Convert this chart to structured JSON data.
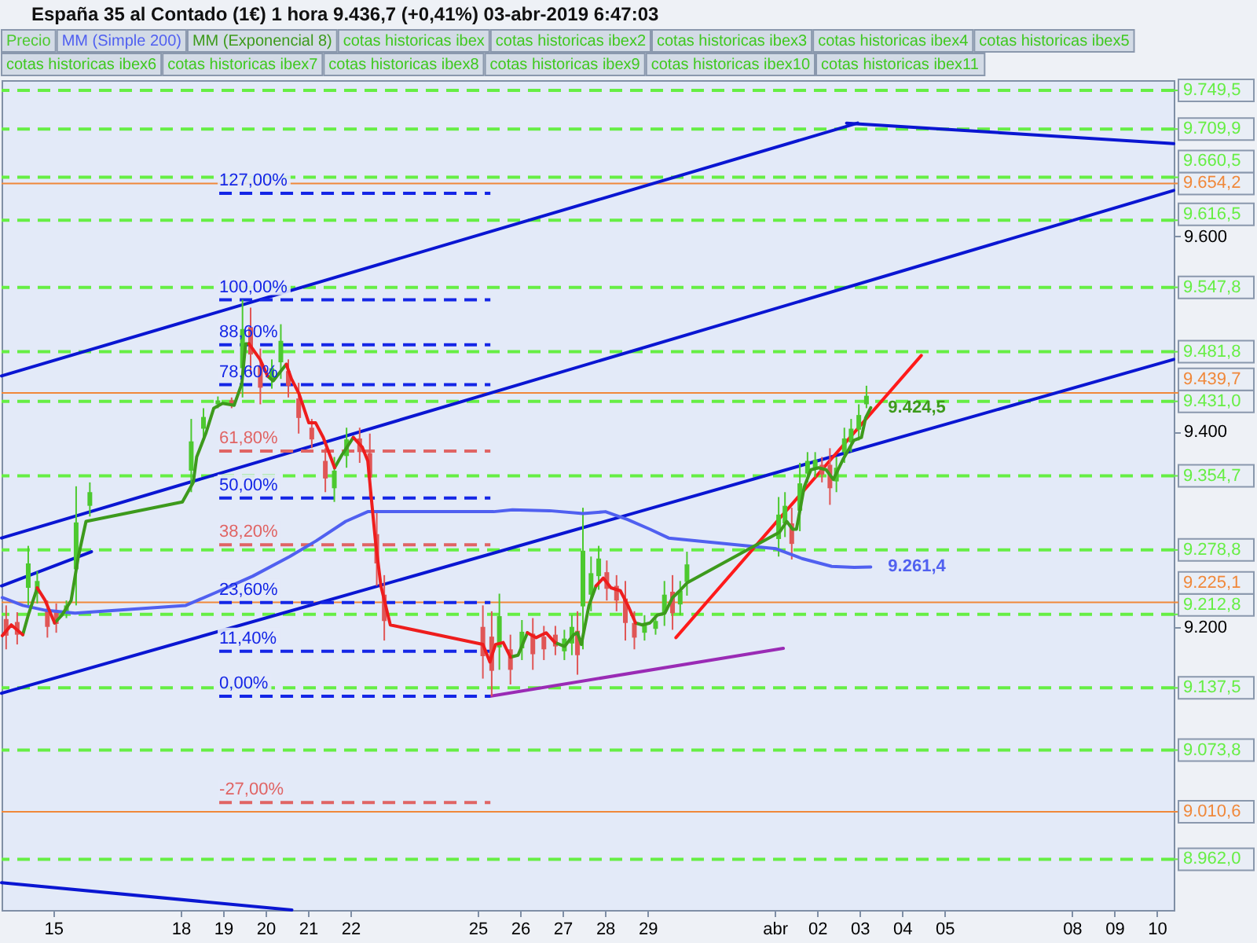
{
  "chart_data": {
    "type": "candlestick",
    "title": "España 35 al Contado (1€) 1 hora 9.436,7 (+0,41%) 03-abr-2019 6:47:03",
    "legend": "top left",
    "xlim": [
      "2019-03-13T18:45",
      "2019-04-10T09:35"
    ],
    "ylim": [
      8910,
      9760
    ],
    "xticks": [
      {
        "value": "2019-03-15",
        "label": "15"
      },
      {
        "value": "2019-03-18",
        "label": "18"
      },
      {
        "value": "2019-03-19",
        "label": "19"
      },
      {
        "value": "2019-03-20",
        "label": "20"
      },
      {
        "value": "2019-03-21",
        "label": "21"
      },
      {
        "value": "2019-03-22",
        "label": "22"
      },
      {
        "value": "2019-03-25",
        "label": "25"
      },
      {
        "value": "2019-03-26",
        "label": "26"
      },
      {
        "value": "2019-03-27",
        "label": "27"
      },
      {
        "value": "2019-03-28",
        "label": "28"
      },
      {
        "value": "2019-03-29",
        "label": "29"
      },
      {
        "value": "2019-04-01",
        "label": "abr"
      },
      {
        "value": "2019-04-02",
        "label": "02"
      },
      {
        "value": "2019-04-03",
        "label": "03"
      },
      {
        "value": "2019-04-04",
        "label": "04"
      },
      {
        "value": "2019-04-05",
        "label": "05"
      },
      {
        "value": "2019-04-08",
        "label": "08"
      },
      {
        "value": "2019-04-09",
        "label": "09"
      },
      {
        "value": "2019-04-10",
        "label": "10"
      }
    ],
    "yticks": [
      {
        "value": 9200,
        "label": "9.200"
      },
      {
        "value": 9400,
        "label": "9.400"
      },
      {
        "value": 9600,
        "label": "9.600"
      }
    ],
    "ref_lines": [
      {
        "axis": "y",
        "value": 9749.5,
        "label": "9.749,5",
        "color": "#66ee44",
        "line_style": "dashed"
      },
      {
        "axis": "y",
        "value": 9709.9,
        "label": "9.709,9",
        "color": "#66ee44",
        "line_style": "dashed"
      },
      {
        "axis": "y",
        "value": 9660.5,
        "label": "9.660,5",
        "color": "#66ee44",
        "line_style": "dashed"
      },
      {
        "axis": "y",
        "value": 9654.2,
        "label": "9.654,2",
        "color": "#f0883a"
      },
      {
        "axis": "y",
        "value": 9616.5,
        "label": "9.616,5",
        "color": "#66ee44",
        "line_style": "dashed"
      },
      {
        "axis": "y",
        "value": 9547.8,
        "label": "9.547,8",
        "color": "#66ee44",
        "line_style": "dashed"
      },
      {
        "axis": "y",
        "value": 9481.8,
        "label": "9.481,8",
        "color": "#66ee44",
        "line_style": "dashed"
      },
      {
        "axis": "y",
        "value": 9439.7,
        "label": "9.439,7",
        "color": "#f0883a"
      },
      {
        "axis": "y",
        "value": 9431.0,
        "label": "9.431,0",
        "color": "#66ee44",
        "line_style": "dashed"
      },
      {
        "axis": "y",
        "value": 9354.7,
        "label": "9.354,7",
        "color": "#66ee44",
        "line_style": "dashed"
      },
      {
        "axis": "y",
        "value": 9278.8,
        "label": "9.278,8",
        "color": "#66ee44",
        "line_style": "dashed"
      },
      {
        "axis": "y",
        "value": 9225.1,
        "label": "9.225,1",
        "color": "#f0883a"
      },
      {
        "axis": "y",
        "value": 9212.8,
        "label": "9.212,8",
        "color": "#66ee44",
        "line_style": "dashed"
      },
      {
        "axis": "y",
        "value": 9137.5,
        "label": "9.137,5",
        "color": "#66ee44",
        "line_style": "dashed"
      },
      {
        "axis": "y",
        "value": 9073.8,
        "label": "9.073,8",
        "color": "#66ee44",
        "line_style": "dashed"
      },
      {
        "axis": "y",
        "value": 9010.6,
        "label": "9.010,6",
        "color": "#f0883a"
      },
      {
        "axis": "y",
        "value": 8962.0,
        "label": "8.962,0",
        "color": "#66ee44",
        "line_style": "dashed"
      }
    ],
    "annotations": [
      "cotas historicas ibex",
      "cotas historicas ibex2",
      "cotas historicas ibex3",
      "cotas historicas ibex4",
      "cotas historicas ibex5",
      "cotas historicas ibex6",
      "cotas historicas ibex7",
      "cotas historicas ibex8",
      "cotas historicas ibex9",
      "cotas historicas ibex10",
      "cotas historicas ibex11",
      {
        "text": "127,00%",
        "x": "2019-03-18T21:50",
        "y": 9644
      },
      {
        "text": "100,00%",
        "x": "2019-03-18T21:50",
        "y": 9535
      },
      {
        "text": "88,60%",
        "x": "2019-03-18T21:50",
        "y": 9489
      },
      {
        "text": "78,60%",
        "x": "2019-03-18T21:50",
        "y": 9448
      },
      {
        "text": "61,80%",
        "x": "2019-03-18T21:50",
        "y": 9380
      },
      {
        "text": "50,00%",
        "x": "2019-03-18T21:50",
        "y": 9332
      },
      {
        "text": "38,20%",
        "x": "2019-03-18T21:50",
        "y": 9284
      },
      {
        "text": "23,60%",
        "x": "2019-03-18T21:50",
        "y": 9225
      },
      {
        "text": "11,40%",
        "x": "2019-03-18T21:50",
        "y": 9175
      },
      {
        "text": "0,00%",
        "x": "2019-03-18T21:50",
        "y": 9129
      },
      {
        "text": "-27,00%",
        "x": "2019-03-18T21:50",
        "y": 9020
      }
    ],
    "x": [
      "2019-03-13T19:10",
      "2019-03-14T00:15",
      "2019-03-14T06:45",
      "2019-03-14T09:50",
      "2019-03-14T14:55",
      "2019-03-14T19:25",
      "2019-03-15T00:45",
      "2019-03-15T04:50",
      "2019-03-15T10:05",
      "2019-03-15T14:10",
      "2019-03-15T18:30",
      "2019-03-18T01:00",
      "2019-03-18T07:10",
      "2019-03-18T09:05",
      "2019-03-18T14:25",
      "2019-03-18T18:45",
      "2019-03-18T23:45",
      "2019-03-19T03:05",
      "2019-03-19T06:15",
      "2019-03-19T10:35",
      "2019-03-19T12:45",
      "2019-03-19T14:40",
      "2019-03-19T20:55",
      "2019-03-20T01:10",
      "2019-03-20T04:20",
      "2019-03-20T08:40",
      "2019-03-20T11:45",
      "2019-03-20T14:40",
      "2019-03-20T18:55",
      "2019-03-21T00:30",
      "2019-03-21T04:20",
      "2019-03-21T08:40",
      "2019-03-21T15:05",
      "2019-03-21T19:10",
      "2019-03-22T01:40",
      "2019-03-22T06:45",
      "2019-03-22T09:50",
      "2019-03-22T14:10",
      "2019-03-22T17:15",
      "2019-03-22T22:35",
      "2019-03-25T02:55",
      "2019-03-25T06:55",
      "2019-03-25T08:25",
      "2019-03-25T10:05",
      "2019-03-25T14:25",
      "2019-03-25T18:30",
      "2019-03-25T22:50",
      "2019-03-26T04:05",
      "2019-03-26T09:05",
      "2019-03-26T14:40",
      "2019-03-26T19:40",
      "2019-03-27T01:10",
      "2019-03-27T06:15",
      "2019-03-27T08:25",
      "2019-03-27T10:35",
      "2019-03-27T14:55",
      "2019-03-27T18:55",
      "2019-03-27T23:00",
      "2019-03-28T03:20",
      "2019-03-28T08:40",
      "2019-03-28T12:55",
      "2019-03-28T17:15",
      "2019-03-28T21:05",
      "2019-03-29T01:25",
      "2019-03-29T05:30",
      "2019-03-29T09:50",
      "2019-03-29T12:00",
      "2019-03-29T14:10",
      "2019-03-29T18:15",
      "2019-03-29T22:20",
      "2019-04-01T02:40",
      "2019-04-01T06:45",
      "2019-04-01T08:25",
      "2019-04-01T10:05",
      "2019-04-01T12:15",
      "2019-04-01T16:35",
      "2019-04-01T20:25",
      "2019-04-02T00:45",
      "2019-04-02T05:00",
      "2019-04-02T09:05",
      "2019-04-02T14:25",
      "2019-04-02T20:40",
      "2019-04-03T01:00",
      "2019-04-03T03:20",
      "2019-04-03T06:15"
    ],
    "series": [
      {
        "name": "Precio",
        "x": [
          "2019-03-13T21:20",
          "2019-03-14T03:35",
          "2019-03-14T09:50",
          "2019-03-14T14:55",
          "2019-03-14T20:40",
          "2019-03-15T01:40",
          "2019-03-15T07:25",
          "2019-03-15T12:55",
          "2019-03-15T20:40",
          "2019-03-18T06:00",
          "2019-03-18T12:55",
          "2019-03-18T21:05",
          "2019-03-19T04:50",
          "2019-03-19T11:00",
          "2019-03-19T15:35",
          "2019-03-19T21:05",
          "2019-03-20T03:35",
          "2019-03-20T08:40",
          "2019-03-20T12:55",
          "2019-03-20T18:45",
          "2019-03-21T02:10",
          "2019-03-21T09:50",
          "2019-03-21T14:55",
          "2019-03-21T21:50",
          "2019-03-22T05:15",
          "2019-03-22T11:00",
          "2019-03-22T14:55",
          "2019-03-22T19:10",
          "2019-03-25T02:55",
          "2019-03-25T07:55",
          "2019-03-25T12:15",
          "2019-03-25T18:30",
          "2019-03-26T01:00",
          "2019-03-26T07:10",
          "2019-03-26T13:25",
          "2019-03-26T19:55",
          "2019-03-27T01:00",
          "2019-03-27T05:15",
          "2019-03-27T08:25",
          "2019-03-27T11:30",
          "2019-03-27T16:05",
          "2019-03-27T20:25",
          "2019-03-28T01:00",
          "2019-03-28T06:30",
          "2019-03-28T11:30",
          "2019-03-28T16:35",
          "2019-03-28T22:20",
          "2019-03-29T04:35",
          "2019-03-29T09:35",
          "2019-03-29T14:10",
          "2019-03-29T18:30",
          "2019-03-29T22:20",
          "2019-04-01T02:10",
          "2019-04-01T05:45",
          "2019-04-01T09:35",
          "2019-04-01T14:10",
          "2019-04-01T18:30",
          "2019-04-01T22:50",
          "2019-04-02T02:40",
          "2019-04-02T07:10",
          "2019-04-02T10:50",
          "2019-04-02T15:20",
          "2019-04-02T19:10",
          "2019-04-02T23:30",
          "2019-04-03T03:50"
        ],
        "ohlc": [
          [
            9208,
            9222,
            9177,
            9191
          ],
          [
            9205,
            9215,
            9182,
            9192
          ],
          [
            9240,
            9283,
            9222,
            9265
          ],
          [
            9234,
            9257,
            9224,
            9247
          ],
          [
            9216,
            9227,
            9189,
            9200
          ],
          [
            9215,
            9224,
            9194,
            9203
          ],
          [
            9214,
            9227,
            9209,
            9222
          ],
          [
            9259,
            9344,
            9222,
            9307
          ],
          [
            9324,
            9348,
            9313,
            9338
          ],
          [
            9360,
            9413,
            9338,
            9390
          ],
          [
            9403,
            9424,
            9394,
            9415
          ],
          [
            9428,
            9436,
            9424,
            9432
          ],
          [
            9432,
            9435,
            9424,
            9427
          ],
          [
            9465,
            9535,
            9435,
            9505
          ],
          [
            9507,
            9527,
            9459,
            9479
          ],
          [
            9468,
            9485,
            9428,
            9445
          ],
          [
            9453,
            9474,
            9444,
            9465
          ],
          [
            9471,
            9510,
            9454,
            9493
          ],
          [
            9462,
            9474,
            9435,
            9447
          ],
          [
            9434,
            9450,
            9398,
            9414
          ],
          [
            9404,
            9413,
            9383,
            9392
          ],
          [
            9370,
            9383,
            9338,
            9352
          ],
          [
            9342,
            9374,
            9328,
            9360
          ],
          [
            9375,
            9404,
            9363,
            9392
          ],
          [
            9393,
            9404,
            9368,
            9379
          ],
          [
            9378,
            9398,
            9333,
            9353
          ],
          [
            9295,
            9318,
            9242,
            9265
          ],
          [
            9233,
            9253,
            9186,
            9206
          ],
          [
            9200,
            9222,
            9147,
            9170
          ],
          [
            9190,
            9216,
            9129,
            9155
          ],
          [
            9179,
            9234,
            9156,
            9211
          ],
          [
            9177,
            9192,
            9141,
            9156
          ],
          [
            9178,
            9207,
            9166,
            9195
          ],
          [
            9193,
            9209,
            9156,
            9172
          ],
          [
            9190,
            9201,
            9166,
            9177
          ],
          [
            9192,
            9201,
            9171,
            9180
          ],
          [
            9175,
            9197,
            9166,
            9188
          ],
          [
            9183,
            9212,
            9171,
            9200
          ],
          [
            9196,
            9216,
            9151,
            9171
          ],
          [
            9221,
            9322,
            9177,
            9278
          ],
          [
            9233,
            9272,
            9216,
            9255
          ],
          [
            9252,
            9283,
            9238,
            9270
          ],
          [
            9256,
            9268,
            9227,
            9239
          ],
          [
            9242,
            9253,
            9216,
            9227
          ],
          [
            9229,
            9247,
            9186,
            9204
          ],
          [
            9204,
            9216,
            9177,
            9189
          ],
          [
            9194,
            9212,
            9186,
            9204
          ],
          [
            9198,
            9212,
            9192,
            9206
          ],
          [
            9215,
            9247,
            9201,
            9233
          ],
          [
            9236,
            9253,
            9197,
            9214
          ],
          [
            9223,
            9247,
            9212,
            9237
          ],
          [
            9246,
            9277,
            9232,
            9264
          ],
          [
            9290,
            9333,
            9272,
            9315
          ],
          [
            9306,
            9338,
            9292,
            9324
          ],
          [
            9306,
            9322,
            9269,
            9285
          ],
          [
            9319,
            9368,
            9298,
            9347
          ],
          [
            9357,
            9379,
            9348,
            9370
          ],
          [
            9361,
            9379,
            9353,
            9371
          ],
          [
            9366,
            9374,
            9348,
            9356
          ],
          [
            9366,
            9383,
            9325,
            9342
          ],
          [
            9349,
            9374,
            9338,
            9363
          ],
          [
            9379,
            9404,
            9368,
            9393
          ],
          [
            9389,
            9413,
            9379,
            9403
          ],
          [
            9402,
            9428,
            9391,
            9417
          ],
          [
            9428,
            9447,
            9424,
            9436.7
          ]
        ],
        "colors": [
          "#e05656",
          "#e05656",
          "#4cc92f",
          "#4cc92f",
          "#e05656",
          "#e05656",
          "#4cc92f",
          "#4cc92f",
          "#4cc92f",
          "#4cc92f",
          "#4cc92f",
          "#4cc92f",
          "#e05656",
          "#4cc92f",
          "#e05656",
          "#e05656",
          "#4cc92f",
          "#4cc92f",
          "#e05656",
          "#e05656",
          "#e05656",
          "#e05656",
          "#4cc92f",
          "#4cc92f",
          "#e05656",
          "#e05656",
          "#e05656",
          "#e05656",
          "#e05656",
          "#e05656",
          "#4cc92f",
          "#e05656",
          "#4cc92f",
          "#e05656",
          "#e05656",
          "#e05656",
          "#4cc92f",
          "#4cc92f",
          "#e05656",
          "#4cc92f",
          "#4cc92f",
          "#4cc92f",
          "#e05656",
          "#e05656",
          "#e05656",
          "#e05656",
          "#4cc92f",
          "#4cc92f",
          "#4cc92f",
          "#e05656",
          "#4cc92f",
          "#4cc92f",
          "#4cc92f",
          "#4cc92f",
          "#e05656",
          "#4cc92f",
          "#4cc92f",
          "#4cc92f",
          "#e05656",
          "#e05656",
          "#4cc92f",
          "#4cc92f",
          "#4cc92f",
          "#4cc92f",
          "#4cc92f"
        ]
      },
      {
        "name": "MM (Simple 200)",
        "type": "line",
        "color": "#5060f0",
        "x": [
          "2019-03-13T19:10",
          "2019-03-14T06:45",
          "2019-03-14T19:25",
          "2019-03-15T12:15",
          "2019-03-18T02:55",
          "2019-03-18T19:40",
          "2019-03-19T16:50",
          "2019-03-20T13:40",
          "2019-03-21T04:35",
          "2019-03-21T21:20",
          "2019-03-22T09:50",
          "2019-03-25T09:05",
          "2019-03-25T19:40",
          "2019-03-26T16:35",
          "2019-03-27T11:30",
          "2019-03-28T00:15",
          "2019-03-28T12:45",
          "2019-03-29T01:25",
          "2019-03-29T12:00",
          "2019-04-01T00:45",
          "2019-04-01T15:20",
          "2019-04-02T08:10",
          "2019-04-02T20:55",
          "2019-04-03T06:15"
        ],
        "values": [
          9230,
          9222,
          9217,
          9214,
          9222,
          9235,
          9252,
          9272,
          9288,
          9308,
          9318,
          9318,
          9320,
          9319,
          9316,
          9318,
          9310,
          9300,
          9291,
          9280,
          9270,
          9262,
          9261,
          9261.4
        ],
        "value_labels": [
          null,
          null,
          null,
          null,
          null,
          null,
          null,
          null,
          null,
          null,
          null,
          null,
          null,
          null,
          null,
          null,
          null,
          null,
          null,
          null,
          null,
          null,
          null,
          "9.261,4"
        ]
      },
      {
        "name": "MM (Exponencial 8)",
        "type": "line",
        "color": "#3d9a1c",
        "values": [
          null,
          null,
          9192,
          9212,
          9240,
          null,
          9204,
          9212,
          9227,
          9272,
          9308,
          9328,
          9348,
          9374,
          9399,
          9424,
          9429,
          9428,
          9427,
          9449,
          9490,
          9490,
          null,
          9457,
          9452,
          9462,
          9469,
          null,
          null,
          null,
          null,
          null,
          9363,
          9376,
          9394,
          null,
          null,
          null,
          null,
          null,
          null,
          null,
          null,
          null,
          null,
          9169,
          9171,
          9194,
          null,
          null,
          9184,
          9180,
          9192,
          9194,
          9182,
          9222,
          9242,
          null,
          null,
          null,
          null,
          9204,
          9202,
          9204,
          9212,
          9214,
          9222,
          9230,
          9237,
          9245,
          9297,
          9308,
          9304,
          9300,
          9300,
          9343,
          9361,
          9363,
          9361,
          9351,
          9371,
          9391,
          9394,
          9414,
          9424.5
        ],
        "value_labels": [
          null,
          null,
          null,
          null,
          null,
          null,
          null,
          null,
          null,
          null,
          null,
          null,
          null,
          null,
          null,
          null,
          null,
          null,
          null,
          null,
          null,
          null,
          null,
          null,
          null,
          null,
          null,
          null,
          null,
          null,
          null,
          null,
          null,
          null,
          null,
          null,
          null,
          null,
          null,
          null,
          null,
          null,
          null,
          null,
          null,
          null,
          null,
          null,
          null,
          null,
          null,
          null,
          null,
          null,
          null,
          null,
          null,
          null,
          null,
          null,
          null,
          null,
          null,
          null,
          null,
          null,
          null,
          null,
          null,
          null,
          null,
          null,
          null,
          null,
          null,
          null,
          null,
          null,
          null,
          null,
          null,
          null,
          null,
          null,
          "9.424,5"
        ]
      },
      {
        "type": "line",
        "color": "#ee1d1d",
        "values": [
          9191,
          9202,
          9192,
          null,
          9240,
          9227,
          9204,
          null,
          null,
          null,
          null,
          null,
          null,
          null,
          null,
          null,
          null,
          null,
          null,
          null,
          null,
          9490,
          9474,
          9457,
          null,
          null,
          9469,
          9454,
          9439,
          9409,
          9409,
          9394,
          9363,
          null,
          9394,
          9384,
          9370,
          9288,
          9242,
          9202,
          9182,
          9164,
          9173,
          9182,
          9184,
          9169,
          null,
          9194,
          9189,
          9194,
          9184,
          null,
          null,
          null,
          null,
          null,
          9242,
          9250,
          9240,
          9237,
          9222,
          9204,
          null,
          null,
          null,
          null,
          null,
          null,
          null,
          null,
          null,
          null,
          null,
          null,
          null,
          null,
          null,
          null,
          null,
          null,
          null,
          null,
          null,
          null,
          null
        ]
      },
      {
        "type": "line",
        "color": "#0a16d2",
        "x": [
          "2019-03-13T18:45",
          "2019-04-02T22:50"
        ],
        "values": [
          9457,
          9716
        ]
      },
      {
        "type": "line",
        "color": "#0a16d2",
        "x": [
          "2019-03-13T18:45",
          "2019-04-10T09:35"
        ],
        "values": [
          9291,
          9647
        ]
      },
      {
        "type": "line",
        "color": "#0a16d2",
        "x": [
          "2019-03-13T18:45",
          "2019-03-15T21:35"
        ],
        "values": [
          9242,
          9277
        ]
      },
      {
        "type": "line",
        "color": "#0a16d2",
        "x": [
          "2019-03-13T18:45",
          "2019-04-10T09:35"
        ],
        "values": [
          9132,
          9474
        ]
      },
      {
        "type": "line",
        "color": "#0a16d2",
        "x": [
          "2019-04-02T16:35",
          "2019-04-10T09:35"
        ],
        "values": [
          9716,
          9695
        ]
      },
      {
        "type": "line",
        "color": "#0a16d2",
        "x": [
          "2019-03-13T18:45",
          "2019-03-20T14:55"
        ],
        "values": [
          8938,
          8910
        ]
      },
      {
        "type": "line",
        "color": "#ff1a1a",
        "x": [
          "2019-03-29T16:05",
          "2019-04-04T10:50"
        ],
        "values": [
          9189,
          9478
        ]
      },
      {
        "type": "line",
        "color": "#9a2bb5",
        "x": [
          "2019-03-25T06:55",
          "2019-04-01T04:50"
        ],
        "values": [
          9129,
          9178
        ]
      },
      {
        "type": "line",
        "color": "#1426e6",
        "line_style": "dashed",
        "x": [
          "2019-03-18T21:50",
          "2019-03-25T07:10"
        ],
        "values": [
          9644,
          9644
        ]
      },
      {
        "type": "line",
        "color": "#1426e6",
        "line_style": "dashed",
        "x": [
          "2019-03-18T21:50",
          "2019-03-25T07:10"
        ],
        "values": [
          9535,
          9535
        ]
      },
      {
        "type": "line",
        "color": "#1426e6",
        "line_style": "dashed",
        "x": [
          "2019-03-18T21:50",
          "2019-03-25T07:10"
        ],
        "values": [
          9489,
          9489
        ]
      },
      {
        "type": "line",
        "color": "#1426e6",
        "line_style": "dashed",
        "x": [
          "2019-03-18T21:50",
          "2019-03-25T07:10"
        ],
        "values": [
          9448,
          9448
        ]
      },
      {
        "type": "line",
        "color": "#e06464",
        "line_style": "dashed",
        "x": [
          "2019-03-18T21:50",
          "2019-03-25T07:10"
        ],
        "values": [
          9380,
          9380
        ]
      },
      {
        "type": "line",
        "color": "#1426e6",
        "line_style": "dashed",
        "x": [
          "2019-03-18T21:50",
          "2019-03-25T07:10"
        ],
        "values": [
          9332,
          9332
        ]
      },
      {
        "type": "line",
        "color": "#e06464",
        "line_style": "dashed",
        "x": [
          "2019-03-18T21:50",
          "2019-03-25T07:10"
        ],
        "values": [
          9284,
          9284
        ]
      },
      {
        "type": "line",
        "color": "#1426e6",
        "line_style": "dashed",
        "x": [
          "2019-03-18T21:50",
          "2019-03-25T07:10"
        ],
        "values": [
          9225,
          9225
        ]
      },
      {
        "type": "line",
        "color": "#1426e6",
        "line_style": "dashed",
        "x": [
          "2019-03-18T21:50",
          "2019-03-25T07:10"
        ],
        "values": [
          9175,
          9175
        ]
      },
      {
        "type": "line",
        "color": "#1426e6",
        "line_style": "dashed",
        "x": [
          "2019-03-18T21:50",
          "2019-03-25T07:10"
        ],
        "values": [
          9129,
          9129
        ]
      },
      {
        "type": "line",
        "color": "#e06464",
        "line_style": "dashed",
        "x": [
          "2019-03-18T21:50",
          "2019-03-25T07:10"
        ],
        "values": [
          9020,
          9020
        ]
      }
    ]
  }
}
